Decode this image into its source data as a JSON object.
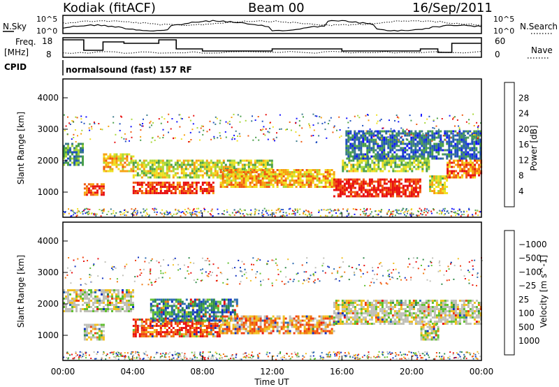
{
  "header": {
    "station": "Kodiak (fitACF)",
    "beam": "Beam 00",
    "date": "16/Sep/2011"
  },
  "strip_labels": {
    "nsky": "N.Sky",
    "nsky_ticks": [
      "10^5",
      "10^0"
    ],
    "nsearch": "N.Search",
    "nsearch_ticks": [
      "10^5",
      "10^0"
    ],
    "freq": "Freq.",
    "freq_unit": "[MHz]",
    "freq_ticks": [
      "18",
      "8"
    ],
    "nave": "Nave",
    "nave_ticks": [
      "60",
      "0"
    ],
    "cpid": "CPID",
    "cpid_value": "normalsound (fast) 157 RF"
  },
  "chart_data": [
    {
      "type": "heatmap",
      "title": "",
      "ylabel": "Slant Range [km]",
      "xlabel": "",
      "ylim": [
        200,
        4600
      ],
      "yticks": [
        "1000",
        "2000",
        "3000",
        "4000"
      ],
      "colorbar": {
        "label": "Power [dB]",
        "ticks": [
          "4",
          "8",
          "12",
          "16",
          "20",
          "24",
          "28"
        ],
        "colors": [
          "#1010ff",
          "#2050c0",
          "#3a7a8a",
          "#4aa04a",
          "#a8d838",
          "#f0e020",
          "#f8a010",
          "#f05a10",
          "#e81010"
        ]
      },
      "bands": [
        {
          "t0": 0.0,
          "t1": 1.2,
          "r0": 1900,
          "r1": 2600,
          "level": 0.35
        },
        {
          "t0": 1.2,
          "t1": 2.3,
          "r0": 950,
          "r1": 1350,
          "level": 0.85
        },
        {
          "t0": 2.3,
          "t1": 4.0,
          "r0": 1700,
          "r1": 2300,
          "level": 0.65
        },
        {
          "t0": 4.0,
          "t1": 8.6,
          "r0": 1000,
          "r1": 1400,
          "level": 0.9
        },
        {
          "t0": 4.0,
          "t1": 12.0,
          "r0": 1500,
          "r1": 2100,
          "level": 0.55
        },
        {
          "t0": 9.0,
          "t1": 15.5,
          "r0": 1200,
          "r1": 1800,
          "level": 0.7
        },
        {
          "t0": 15.5,
          "t1": 20.5,
          "r0": 900,
          "r1": 1500,
          "level": 0.95
        },
        {
          "t0": 16.0,
          "t1": 21.0,
          "r0": 1700,
          "r1": 2200,
          "level": 0.5
        },
        {
          "t0": 21.0,
          "t1": 22.0,
          "r0": 1000,
          "r1": 1600,
          "level": 0.6
        },
        {
          "t0": 22.0,
          "t1": 24.0,
          "r0": 1500,
          "r1": 2100,
          "level": 0.8
        },
        {
          "t0": 16.2,
          "t1": 24.0,
          "r0": 2100,
          "r1": 3000,
          "level": 0.25
        }
      ]
    },
    {
      "type": "heatmap",
      "title": "",
      "ylabel": "Slant Range [km]",
      "xlabel": "Time UT",
      "ylim": [
        200,
        4600
      ],
      "yticks": [
        "1000",
        "2000",
        "3000",
        "4000"
      ],
      "xticks": [
        "00:00",
        "04:00",
        "08:00",
        "12:00",
        "16:00",
        "20:00",
        "00:00"
      ],
      "colorbar": {
        "label": "Velocity [m s^-1]",
        "ticks": [
          "1000",
          "500",
          "100",
          "25",
          "−25",
          "−100",
          "−500",
          "−1000"
        ],
        "colors": [
          "#1030c0",
          "#2a6ab0",
          "#2f8a4a",
          "#60c030",
          "#c0c0b8",
          "#c0c0b8",
          "#f0c020",
          "#f07a10",
          "#f04010",
          "#e81010"
        ]
      },
      "bands": [
        {
          "t0": 0.0,
          "t1": 4.0,
          "r0": 1800,
          "r1": 2500,
          "level": 0.5
        },
        {
          "t0": 1.2,
          "t1": 2.3,
          "r0": 900,
          "r1": 1400,
          "level": 0.5
        },
        {
          "t0": 4.0,
          "t1": 9.0,
          "r0": 1000,
          "r1": 1600,
          "level": 0.15
        },
        {
          "t0": 5.0,
          "t1": 10.0,
          "r0": 1500,
          "r1": 2200,
          "level": 0.8
        },
        {
          "t0": 9.0,
          "t1": 15.5,
          "r0": 1100,
          "r1": 1700,
          "level": 0.3
        },
        {
          "t0": 15.5,
          "t1": 24.0,
          "r0": 1400,
          "r1": 2200,
          "level": 0.5
        },
        {
          "t0": 20.5,
          "t1": 21.5,
          "r0": 900,
          "r1": 1400,
          "level": 0.5
        }
      ]
    }
  ]
}
